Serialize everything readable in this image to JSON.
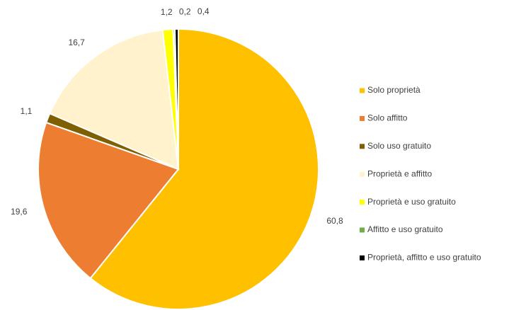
{
  "chart_data": {
    "type": "pie",
    "categories": [
      "Solo proprietà",
      "Solo affitto",
      "Solo uso gratuito",
      "Proprietà e affitto",
      "Proprietà e uso gratuito",
      "Affitto e uso gratuito",
      "Proprietà, affitto e uso gratuito"
    ],
    "values": [
      60.8,
      19.6,
      1.1,
      16.7,
      1.2,
      0.2,
      0.4
    ],
    "value_labels": [
      "60,8",
      "19,6",
      "1,1",
      "16,7",
      "1,2",
      "0,2",
      "0,4"
    ],
    "colors": [
      "#ffc000",
      "#ed7d31",
      "#7f6000",
      "#fff2cc",
      "#ffff00",
      "#70ad47",
      "#000000"
    ],
    "legend": "right"
  }
}
